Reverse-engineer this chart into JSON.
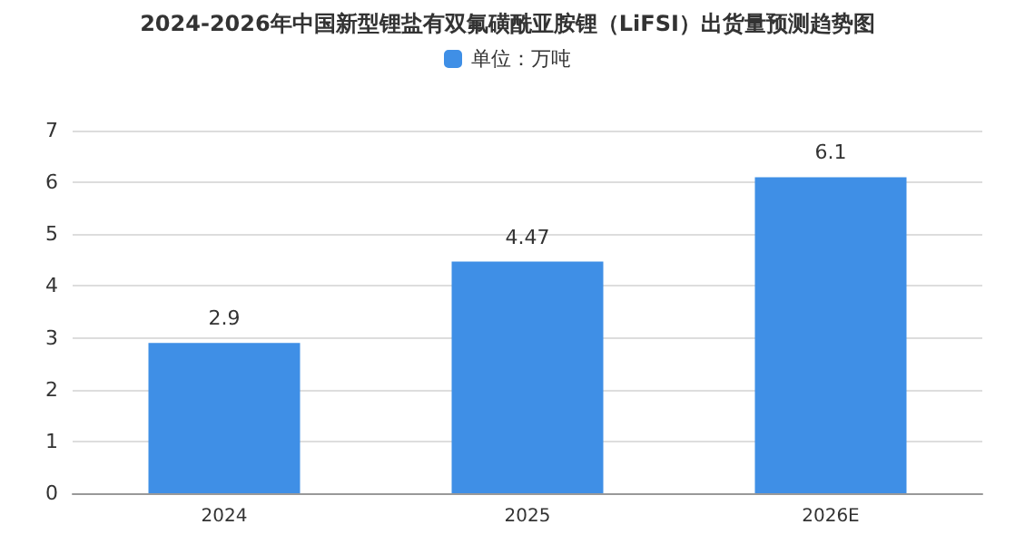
{
  "chart_data": {
    "type": "bar",
    "title": "2024-2026年中国新型锂盐有双氟磺酰亚胺锂（LiFSI）出货量预测趋势图",
    "categories": [
      "2024",
      "2025",
      "2026E"
    ],
    "series": [
      {
        "name": "单位：万吨",
        "color": "#3f8fe6",
        "values": [
          2.9,
          4.47,
          6.1
        ]
      }
    ],
    "ylim": [
      0,
      7
    ],
    "yticks": [
      0,
      1,
      2,
      3,
      4,
      5,
      6,
      7
    ],
    "grid": "y",
    "legend": "top",
    "data_labels": true
  }
}
